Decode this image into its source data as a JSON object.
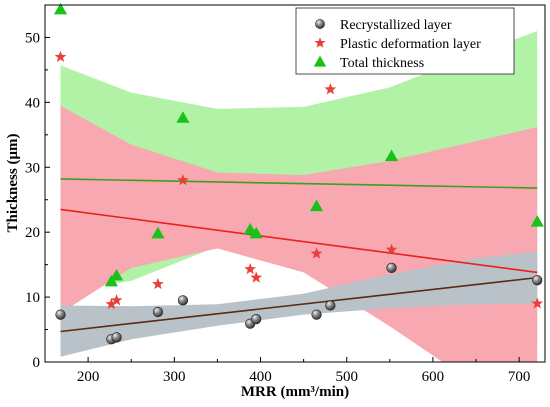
{
  "chart_data": {
    "type": "scatter",
    "xlabel": "MRR (mm³/min)",
    "ylabel": "Thickness (μm)",
    "xlim": [
      150,
      730
    ],
    "ylim": [
      0,
      55
    ],
    "xticks": [
      200,
      300,
      400,
      500,
      600,
      700
    ],
    "yticks": [
      0,
      10,
      20,
      30,
      40,
      50
    ],
    "legend_position": "top-right",
    "grid": false,
    "series": [
      {
        "name": "Recrystallized layer",
        "marker": "sphere",
        "color": "#555555",
        "fit_color": "#5a2a12",
        "band_color": "#b8c2c8",
        "x": [
          168,
          227,
          233,
          281,
          310,
          388,
          395,
          465,
          481,
          552,
          721
        ],
        "y": [
          7.3,
          3.5,
          3.8,
          7.7,
          9.5,
          5.9,
          6.6,
          7.3,
          8.7,
          14.5,
          12.6
        ],
        "fit": [
          [
            168,
            4.7
          ],
          [
            721,
            13.0
          ]
        ],
        "band": {
          "upper": [
            [
              168,
              8.7
            ],
            [
              250,
              8.6
            ],
            [
              350,
              8.9
            ],
            [
              450,
              10.5
            ],
            [
              550,
              13.5
            ],
            [
              650,
              16.0
            ],
            [
              721,
              17.0
            ]
          ],
          "lower": [
            [
              721,
              9.0
            ],
            [
              650,
              8.9
            ],
            [
              550,
              8.3
            ],
            [
              450,
              7.3
            ],
            [
              350,
              5.6
            ],
            [
              250,
              3.5
            ],
            [
              168,
              0.8
            ]
          ]
        }
      },
      {
        "name": "Plastic deformation layer",
        "marker": "star",
        "color": "#e8413b",
        "fit_color": "#e8211b",
        "band_color": "#f7a8b0",
        "x": [
          168,
          227,
          233,
          281,
          310,
          388,
          395,
          465,
          481,
          552,
          721
        ],
        "y": [
          47.0,
          8.9,
          9.5,
          12.0,
          28.0,
          14.3,
          13.0,
          16.7,
          42.0,
          17.3,
          9.0
        ],
        "fit": [
          [
            168,
            23.5
          ],
          [
            721,
            13.8
          ]
        ],
        "band": {
          "upper": [
            [
              168,
              39.5
            ],
            [
              250,
              33.5
            ],
            [
              350,
              29.2
            ],
            [
              450,
              28.8
            ],
            [
              550,
              31.0
            ],
            [
              650,
              34.0
            ],
            [
              721,
              36.2
            ]
          ],
          "lower": [
            [
              721,
              -8.5
            ],
            [
              650,
              -3.5
            ],
            [
              550,
              5.5
            ],
            [
              450,
              13.8
            ],
            [
              350,
              17.5
            ],
            [
              250,
              14.5
            ],
            [
              168,
              7.5
            ]
          ]
        }
      },
      {
        "name": "Total thickness",
        "marker": "triangle",
        "color": "#18c218",
        "fit_color": "#3ca01e",
        "band_color": "#b2f2a6",
        "x": [
          168,
          227,
          233,
          281,
          310,
          388,
          395,
          465,
          552,
          721
        ],
        "y": [
          54.3,
          12.4,
          13.3,
          19.8,
          37.6,
          20.4,
          19.8,
          24.0,
          31.7,
          21.6
        ],
        "fit": [
          [
            168,
            28.2
          ],
          [
            721,
            26.8
          ]
        ],
        "band": {
          "upper": [
            [
              168,
              45.7
            ],
            [
              250,
              41.5
            ],
            [
              350,
              39.0
            ],
            [
              450,
              39.3
            ],
            [
              550,
              42.3
            ],
            [
              650,
              47.5
            ],
            [
              721,
              51.0
            ]
          ],
          "lower": [
            [
              721,
              2.0
            ],
            [
              650,
              6.5
            ],
            [
              550,
              14.0
            ],
            [
              450,
              18.2
            ],
            [
              350,
              17.8
            ],
            [
              250,
              12.5
            ],
            [
              168,
              11.0
            ]
          ]
        }
      }
    ]
  }
}
